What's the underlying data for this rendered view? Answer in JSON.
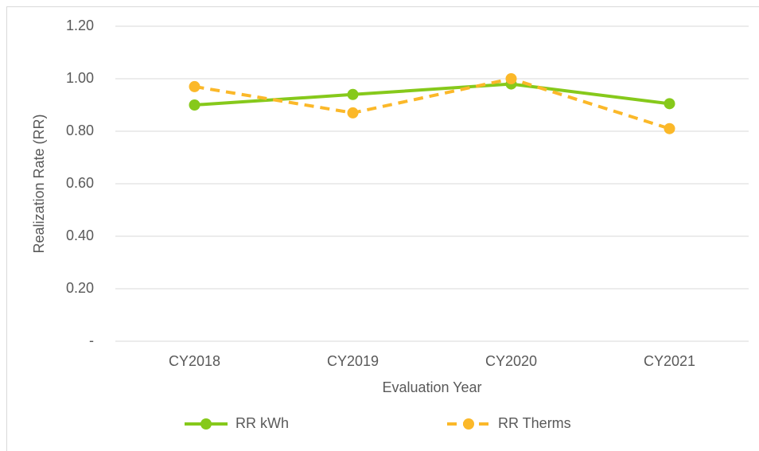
{
  "chart_data": {
    "type": "line",
    "x_label": "Evaluation Year",
    "y_label": "Realization Rate (RR)",
    "categories": [
      "CY2018",
      "CY2019",
      "CY2020",
      "CY2021"
    ],
    "series": [
      {
        "name": "RR kWh",
        "color": "#86c91b",
        "dashed": false,
        "values": [
          0.9,
          0.94,
          0.98,
          0.905
        ]
      },
      {
        "name": "RR Therms",
        "color": "#fbb829",
        "dashed": true,
        "values": [
          0.97,
          0.87,
          1.0,
          0.81
        ]
      }
    ],
    "ylim": [
      0,
      1.2
    ],
    "yticks": [
      {
        "value": 0,
        "label": "-"
      },
      {
        "value": 0.2,
        "label": "0.20"
      },
      {
        "value": 0.4,
        "label": "0.40"
      },
      {
        "value": 0.6,
        "label": "0.60"
      },
      {
        "value": 0.8,
        "label": "0.80"
      },
      {
        "value": 1.0,
        "label": "1.00"
      },
      {
        "value": 1.2,
        "label": "1.20"
      }
    ],
    "grid": true,
    "legend": "bottom"
  }
}
